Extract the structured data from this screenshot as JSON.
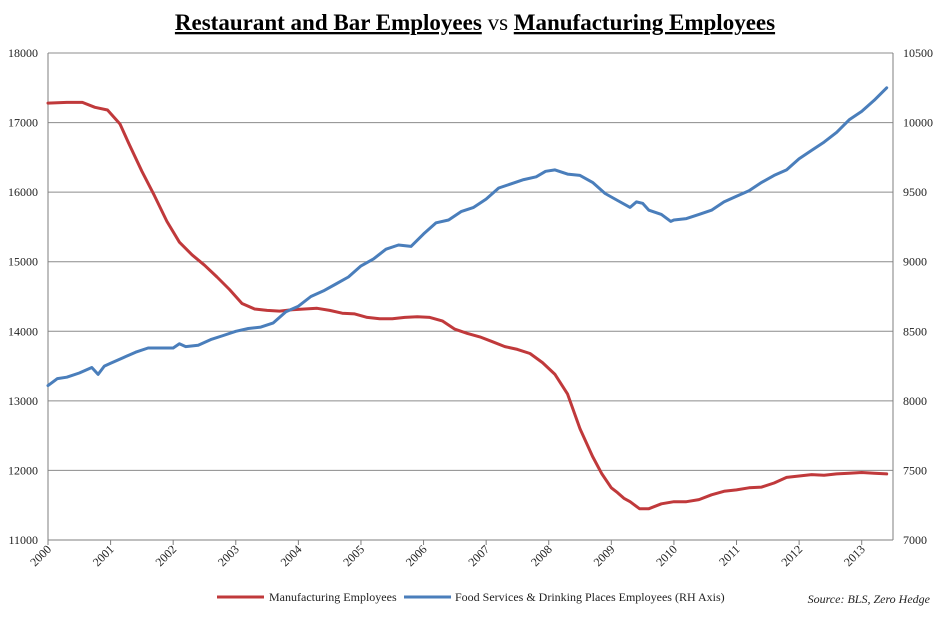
{
  "title": {
    "part1": "Restaurant and Bar Employees",
    "part2": " vs ",
    "part3": "Manufacturing Employees"
  },
  "source": "Source: BLS, Zero Hedge",
  "colors": {
    "manufacturing": "#C0393B",
    "food_services": "#4A7EBB",
    "grid": "#8C8C8C",
    "axis": "#7F7F7F"
  },
  "chart_data": {
    "type": "line",
    "title": "Restaurant and Bar Employees vs Manufacturing Employees",
    "x_range": [
      2000,
      2013.5
    ],
    "x_ticks": [
      "2000",
      "2001",
      "2002",
      "2003",
      "2004",
      "2005",
      "2006",
      "2007",
      "2008",
      "2009",
      "2010",
      "2011",
      "2012",
      "2013"
    ],
    "y_left": {
      "range": [
        11000,
        18000
      ],
      "ticks": [
        "11000",
        "12000",
        "13000",
        "14000",
        "15000",
        "16000",
        "17000",
        "18000"
      ]
    },
    "y_right": {
      "range": [
        7000,
        10500
      ],
      "ticks": [
        "7000",
        "7500",
        "8000",
        "8500",
        "9000",
        "9500",
        "10000",
        "10500"
      ]
    },
    "legend_position": "bottom",
    "series": [
      {
        "name": "Manufacturing Employees",
        "axis": "left",
        "x": [
          2000,
          2000.3,
          2000.55,
          2000.75,
          2000.95,
          2001.15,
          2001.3,
          2001.5,
          2001.7,
          2001.9,
          2002.1,
          2002.3,
          2002.5,
          2002.7,
          2002.9,
          2003.1,
          2003.3,
          2003.5,
          2003.7,
          2003.9,
          2004.1,
          2004.3,
          2004.5,
          2004.7,
          2004.9,
          2005.1,
          2005.3,
          2005.5,
          2005.7,
          2005.9,
          2006.1,
          2006.3,
          2006.5,
          2006.7,
          2006.9,
          2007.1,
          2007.3,
          2007.5,
          2007.7,
          2007.9,
          2008.1,
          2008.3,
          2008.5,
          2008.7,
          2008.85,
          2009.0,
          2009.1,
          2009.2,
          2009.3,
          2009.45,
          2009.6,
          2009.8,
          2010.0,
          2010.2,
          2010.4,
          2010.6,
          2010.8,
          2011.0,
          2011.2,
          2011.4,
          2011.6,
          2011.8,
          2012.0,
          2012.2,
          2012.4,
          2012.6,
          2012.8,
          2013.0,
          2013.2,
          2013.4
        ],
        "values": [
          17280,
          17290,
          17290,
          17220,
          17180,
          16980,
          16680,
          16300,
          15950,
          15580,
          15280,
          15100,
          14950,
          14780,
          14600,
          14400,
          14320,
          14300,
          14290,
          14310,
          14320,
          14330,
          14300,
          14260,
          14250,
          14200,
          14180,
          14180,
          14200,
          14210,
          14200,
          14150,
          14030,
          13970,
          13920,
          13850,
          13780,
          13740,
          13680,
          13550,
          13380,
          13100,
          12600,
          12200,
          11950,
          11750,
          11680,
          11600,
          11550,
          11450,
          11450,
          11520,
          11550,
          11550,
          11580,
          11650,
          11700,
          11720,
          11750,
          11760,
          11820,
          11900,
          11920,
          11940,
          11930,
          11950,
          11960,
          11970,
          11960,
          11950
        ]
      },
      {
        "name": "Food Services & Drinking Places Employees (RH Axis)",
        "axis": "right",
        "x": [
          2000,
          2000.15,
          2000.3,
          2000.5,
          2000.7,
          2000.8,
          2000.9,
          2001.0,
          2001.2,
          2001.4,
          2001.6,
          2001.8,
          2002.0,
          2002.1,
          2002.2,
          2002.4,
          2002.6,
          2002.8,
          2003.0,
          2003.2,
          2003.4,
          2003.6,
          2003.8,
          2004.0,
          2004.2,
          2004.4,
          2004.6,
          2004.8,
          2005.0,
          2005.2,
          2005.4,
          2005.6,
          2005.8,
          2006.0,
          2006.2,
          2006.4,
          2006.6,
          2006.8,
          2007.0,
          2007.2,
          2007.4,
          2007.6,
          2007.8,
          2007.95,
          2008.1,
          2008.3,
          2008.5,
          2008.7,
          2008.9,
          2009.1,
          2009.3,
          2009.4,
          2009.5,
          2009.6,
          2009.8,
          2009.95,
          2010.0,
          2010.2,
          2010.4,
          2010.6,
          2010.8,
          2011.0,
          2011.2,
          2011.4,
          2011.6,
          2011.8,
          2012.0,
          2012.2,
          2012.4,
          2012.6,
          2012.8,
          2013.0,
          2013.2,
          2013.4
        ],
        "values": [
          8110,
          8160,
          8170,
          8200,
          8240,
          8190,
          8250,
          8270,
          8310,
          8350,
          8380,
          8380,
          8380,
          8410,
          8390,
          8400,
          8440,
          8470,
          8500,
          8520,
          8530,
          8560,
          8640,
          8680,
          8750,
          8790,
          8840,
          8890,
          8970,
          9020,
          9090,
          9120,
          9110,
          9200,
          9280,
          9300,
          9360,
          9390,
          9450,
          9530,
          9560,
          9590,
          9610,
          9650,
          9660,
          9630,
          9620,
          9570,
          9490,
          9440,
          9390,
          9430,
          9420,
          9370,
          9340,
          9290,
          9300,
          9310,
          9340,
          9370,
          9430,
          9470,
          9510,
          9570,
          9620,
          9660,
          9740,
          9800,
          9860,
          9930,
          10020,
          10080,
          10160,
          10250
        ]
      }
    ]
  }
}
